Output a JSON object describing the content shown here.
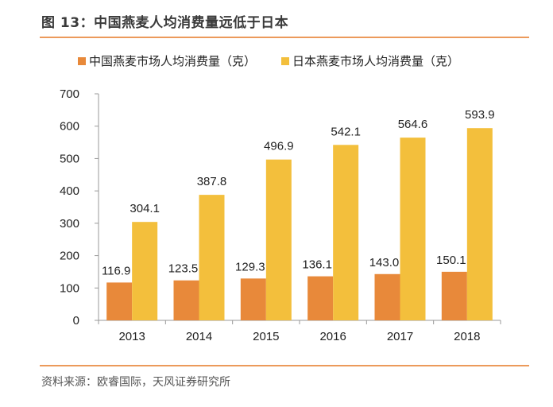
{
  "header": {
    "title": "图 13：中国燕麦人均消费量远低于日本"
  },
  "footer": {
    "source": "资料来源：欧睿国际，天风证券研究所"
  },
  "colors": {
    "china": "#e8893a",
    "japan": "#f3bf3c",
    "accent_rule": "#ec9a5b",
    "axis": "#999999"
  },
  "chart_data": {
    "type": "bar",
    "categories": [
      "2013",
      "2014",
      "2015",
      "2016",
      "2017",
      "2018"
    ],
    "series": [
      {
        "name": "中国燕麦市场人均消费量（克）",
        "values": [
          116.9,
          123.5,
          129.3,
          136.1,
          143.0,
          150.1
        ],
        "labels": [
          "116.9",
          "123.5",
          "129.3",
          "136.1",
          "143.0",
          "150.1"
        ]
      },
      {
        "name": "日本燕麦市场人均消费量（克）",
        "values": [
          304.1,
          387.8,
          496.9,
          542.1,
          564.6,
          593.9
        ],
        "labels": [
          "304.1",
          "387.8",
          "496.9",
          "542.1",
          "564.6",
          "593.9"
        ]
      }
    ],
    "ylim": [
      0,
      700
    ],
    "yticks": [
      "0",
      "100",
      "200",
      "300",
      "400",
      "500",
      "600",
      "700"
    ],
    "legend": "top",
    "grid": false
  }
}
